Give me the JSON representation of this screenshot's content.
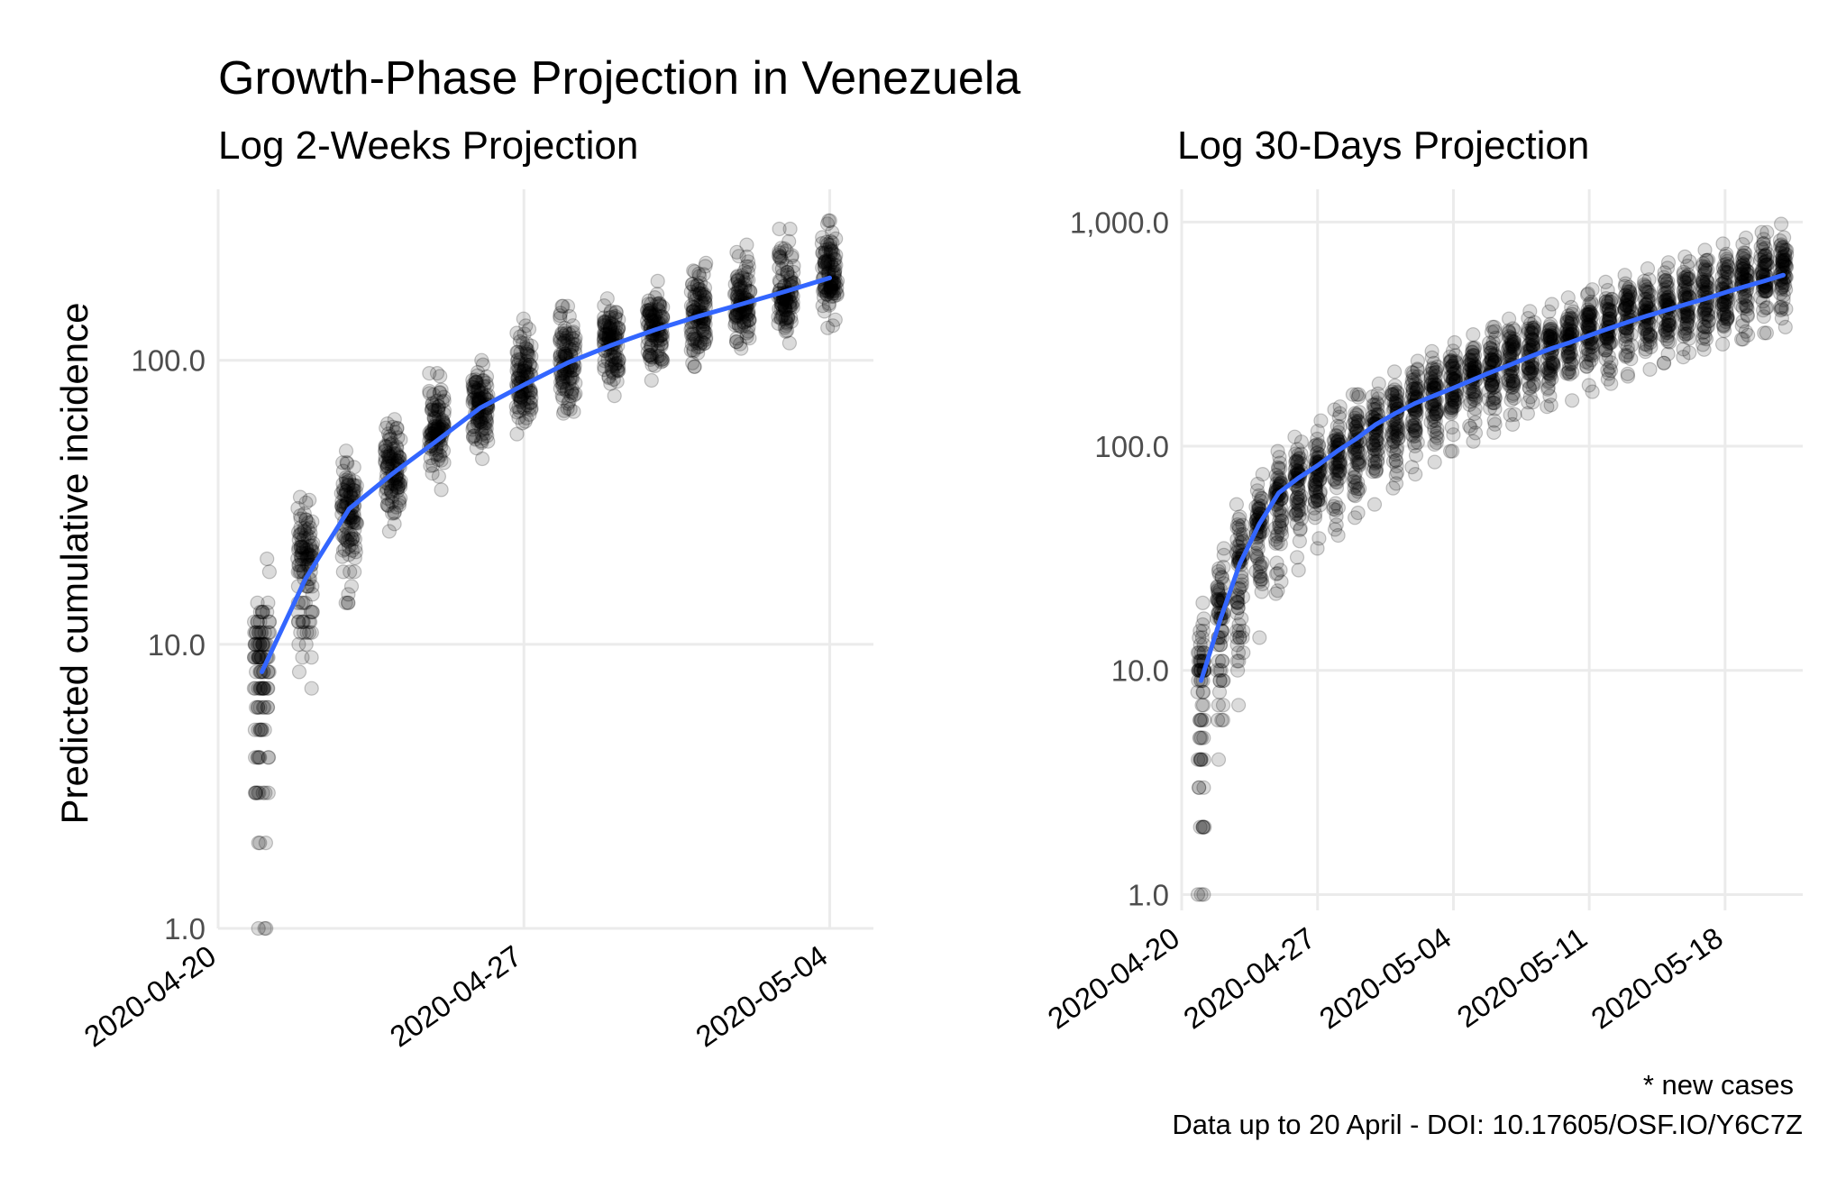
{
  "title": "Growth-Phase Projection in Venezuela",
  "ylabel": "Predicted cumulative incidence",
  "caption": {
    "line1": "* new cases",
    "line2": "Data up to 20 April - DOI: 10.17605/OSF.IO/Y6C7Z"
  },
  "colors": {
    "points": "#000000",
    "trend": "#3366ff",
    "grid": "#ebebeb",
    "tick": "#4d4d4d"
  },
  "chart_data": [
    {
      "type": "scatter",
      "subtitle": "Log 2-Weeks Projection",
      "xlabel": "",
      "ylabel": "Predicted cumulative incidence",
      "x_scale": "date",
      "y_scale": "log10",
      "xlim": [
        "2020-04-20",
        "2020-05-05"
      ],
      "ylim": [
        1,
        400
      ],
      "x_ticks": [
        "2020-04-20",
        "2020-04-27",
        "2020-05-04"
      ],
      "y_ticks": [
        1,
        10,
        100
      ],
      "y_tick_labels": [
        "1.0",
        "10.0",
        "100.0"
      ],
      "grid": true,
      "point_series": {
        "x": [
          "2020-04-21",
          "2020-04-22",
          "2020-04-23",
          "2020-04-24",
          "2020-04-25",
          "2020-04-26",
          "2020-04-27",
          "2020-04-28",
          "2020-04-29",
          "2020-04-30",
          "2020-05-01",
          "2020-05-02",
          "2020-05-03",
          "2020-05-04"
        ],
        "median": [
          8,
          20,
          30,
          42,
          55,
          70,
          85,
          100,
          115,
          130,
          145,
          160,
          175,
          195
        ],
        "low": [
          1,
          7,
          14,
          25,
          35,
          45,
          55,
          65,
          75,
          85,
          95,
          110,
          115,
          130
        ],
        "high": [
          20,
          33,
          48,
          62,
          90,
          100,
          140,
          155,
          165,
          190,
          220,
          255,
          290,
          310
        ]
      },
      "trend": {
        "x": [
          "2020-04-21",
          "2020-04-22",
          "2020-04-23",
          "2020-04-24",
          "2020-04-25",
          "2020-04-26",
          "2020-04-27",
          "2020-04-28",
          "2020-04-29",
          "2020-04-30",
          "2020-05-01",
          "2020-05-02",
          "2020-05-03",
          "2020-05-04"
        ],
        "y": [
          8,
          17,
          30,
          40,
          52,
          68,
          82,
          98,
          113,
          128,
          143,
          158,
          175,
          195
        ]
      }
    },
    {
      "type": "scatter",
      "subtitle": "Log 30-Days Projection",
      "xlabel": "",
      "ylabel": "",
      "x_scale": "date",
      "y_scale": "log10",
      "xlim": [
        "2020-04-20",
        "2020-05-22"
      ],
      "ylim": [
        0.85,
        1400
      ],
      "x_ticks": [
        "2020-04-20",
        "2020-04-27",
        "2020-05-04",
        "2020-05-11",
        "2020-05-18"
      ],
      "y_ticks": [
        1,
        10,
        100,
        1000
      ],
      "y_tick_labels": [
        "1.0",
        "10.0",
        "100.0",
        "1,000.0"
      ],
      "grid": true,
      "point_series": {
        "x": [
          "2020-04-21",
          "2020-04-22",
          "2020-04-23",
          "2020-04-24",
          "2020-04-25",
          "2020-04-26",
          "2020-04-27",
          "2020-04-28",
          "2020-04-29",
          "2020-04-30",
          "2020-05-01",
          "2020-05-02",
          "2020-05-03",
          "2020-05-04",
          "2020-05-05",
          "2020-05-06",
          "2020-05-07",
          "2020-05-08",
          "2020-05-09",
          "2020-05-10",
          "2020-05-11",
          "2020-05-12",
          "2020-05-13",
          "2020-05-14",
          "2020-05-15",
          "2020-05-16",
          "2020-05-17",
          "2020-05-18",
          "2020-05-19",
          "2020-05-20",
          "2020-05-21"
        ],
        "median": [
          9,
          18,
          30,
          42,
          58,
          70,
          80,
          92,
          105,
          120,
          140,
          160,
          175,
          190,
          205,
          225,
          245,
          265,
          285,
          305,
          330,
          350,
          375,
          400,
          425,
          450,
          480,
          510,
          540,
          570,
          600
        ],
        "low": [
          1,
          4,
          7,
          14,
          22,
          28,
          35,
          40,
          48,
          55,
          65,
          75,
          85,
          95,
          105,
          115,
          125,
          140,
          150,
          160,
          175,
          190,
          205,
          220,
          235,
          250,
          270,
          285,
          300,
          320,
          340
        ],
        "high": [
          20,
          35,
          55,
          75,
          95,
          110,
          130,
          150,
          170,
          190,
          215,
          240,
          265,
          290,
          315,
          340,
          370,
          400,
          430,
          460,
          500,
          540,
          580,
          620,
          660,
          700,
          750,
          800,
          850,
          900,
          980
        ]
      },
      "trend": {
        "x": [
          "2020-04-21",
          "2020-04-22",
          "2020-04-23",
          "2020-04-24",
          "2020-04-25",
          "2020-04-26",
          "2020-04-27",
          "2020-04-28",
          "2020-04-29",
          "2020-04-30",
          "2020-05-01",
          "2020-05-02",
          "2020-05-03",
          "2020-05-04",
          "2020-05-05",
          "2020-05-06",
          "2020-05-07",
          "2020-05-08",
          "2020-05-09",
          "2020-05-10",
          "2020-05-11",
          "2020-05-12",
          "2020-05-13",
          "2020-05-14",
          "2020-05-15",
          "2020-05-16",
          "2020-05-17",
          "2020-05-18",
          "2020-05-19",
          "2020-05-20",
          "2020-05-21"
        ],
        "y": [
          9,
          17,
          30,
          45,
          62,
          72,
          82,
          95,
          108,
          125,
          140,
          155,
          168,
          182,
          198,
          215,
          232,
          252,
          272,
          290,
          312,
          335,
          358,
          382,
          405,
          430,
          455,
          485,
          515,
          545,
          580
        ]
      }
    }
  ]
}
